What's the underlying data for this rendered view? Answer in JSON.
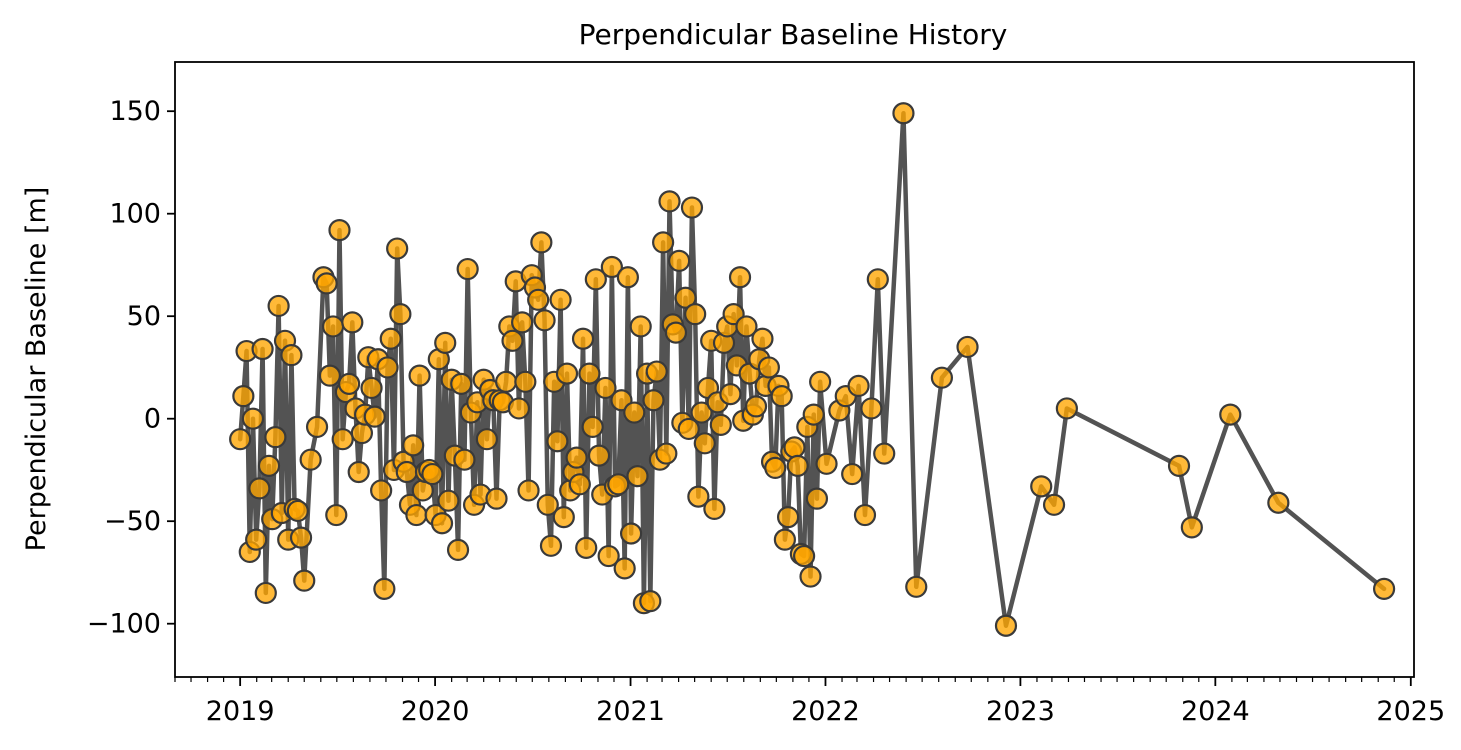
{
  "chart_data": {
    "type": "line",
    "title": "Perpendicular Baseline History",
    "xlabel": "",
    "ylabel": "Perpendicular Baseline [m]",
    "x_ticks": [
      "2019",
      "2020",
      "2021",
      "2022",
      "2023",
      "2024",
      "2025"
    ],
    "y_ticks": [
      150,
      100,
      50,
      0,
      -50,
      -100
    ],
    "y_tick_labels": [
      "150",
      "100",
      "50",
      "0",
      "−50",
      "−100"
    ],
    "xlim": [
      "2018-09-01",
      "2025-01-07"
    ],
    "ylim": [
      -126,
      174
    ],
    "grid": false,
    "legend": "none",
    "colors": {
      "line": "#4a4a4a",
      "marker_fill": "#ffa500",
      "marker_edge": "#3a3a3a"
    },
    "series": [
      {
        "points": [
          [
            "2019-01-01",
            -10
          ],
          [
            "2019-01-07",
            11
          ],
          [
            "2019-01-13",
            33
          ],
          [
            "2019-01-19",
            -65
          ],
          [
            "2019-01-25",
            0
          ],
          [
            "2019-01-31",
            -59
          ],
          [
            "2019-02-06",
            -34
          ],
          [
            "2019-02-12",
            34
          ],
          [
            "2019-02-18",
            -85
          ],
          [
            "2019-02-24",
            -23
          ],
          [
            "2019-03-02",
            -49
          ],
          [
            "2019-03-08",
            -9
          ],
          [
            "2019-03-14",
            55
          ],
          [
            "2019-03-20",
            -46
          ],
          [
            "2019-03-26",
            38
          ],
          [
            "2019-04-01",
            -59
          ],
          [
            "2019-04-07",
            31
          ],
          [
            "2019-04-13",
            -44
          ],
          [
            "2019-04-19",
            -45
          ],
          [
            "2019-04-25",
            -58
          ],
          [
            "2019-05-01",
            -79
          ],
          [
            "2019-05-13",
            -20
          ],
          [
            "2019-05-25",
            -4
          ],
          [
            "2019-06-06",
            69
          ],
          [
            "2019-06-12",
            66
          ],
          [
            "2019-06-18",
            21
          ],
          [
            "2019-06-24",
            45
          ],
          [
            "2019-06-30",
            -47
          ],
          [
            "2019-07-06",
            92
          ],
          [
            "2019-07-12",
            -10
          ],
          [
            "2019-07-18",
            13
          ],
          [
            "2019-07-24",
            17
          ],
          [
            "2019-07-30",
            47
          ],
          [
            "2019-08-05",
            5
          ],
          [
            "2019-08-11",
            -26
          ],
          [
            "2019-08-17",
            -7
          ],
          [
            "2019-08-23",
            2
          ],
          [
            "2019-08-29",
            30
          ],
          [
            "2019-09-04",
            15
          ],
          [
            "2019-09-10",
            1
          ],
          [
            "2019-09-16",
            29
          ],
          [
            "2019-09-22",
            -35
          ],
          [
            "2019-09-28",
            -83
          ],
          [
            "2019-10-04",
            25
          ],
          [
            "2019-10-10",
            39
          ],
          [
            "2019-10-16",
            -25
          ],
          [
            "2019-10-22",
            83
          ],
          [
            "2019-10-28",
            51
          ],
          [
            "2019-11-03",
            -21
          ],
          [
            "2019-11-09",
            -26
          ],
          [
            "2019-11-15",
            -42
          ],
          [
            "2019-11-21",
            -13
          ],
          [
            "2019-11-27",
            -47
          ],
          [
            "2019-12-03",
            21
          ],
          [
            "2019-12-09",
            -35
          ],
          [
            "2019-12-15",
            -26
          ],
          [
            "2019-12-21",
            -25
          ],
          [
            "2019-12-27",
            -27
          ],
          [
            "2020-01-02",
            -47
          ],
          [
            "2020-01-08",
            29
          ],
          [
            "2020-01-14",
            -51
          ],
          [
            "2020-01-20",
            37
          ],
          [
            "2020-01-26",
            -40
          ],
          [
            "2020-02-01",
            19
          ],
          [
            "2020-02-07",
            -18
          ],
          [
            "2020-02-13",
            -64
          ],
          [
            "2020-02-19",
            17
          ],
          [
            "2020-02-25",
            -20
          ],
          [
            "2020-03-02",
            73
          ],
          [
            "2020-03-08",
            3
          ],
          [
            "2020-03-14",
            -42
          ],
          [
            "2020-03-20",
            8
          ],
          [
            "2020-03-26",
            -37
          ],
          [
            "2020-04-01",
            19
          ],
          [
            "2020-04-07",
            -10
          ],
          [
            "2020-04-13",
            14
          ],
          [
            "2020-04-19",
            9
          ],
          [
            "2020-04-25",
            -39
          ],
          [
            "2020-05-01",
            9
          ],
          [
            "2020-05-07",
            8
          ],
          [
            "2020-05-13",
            18
          ],
          [
            "2020-05-19",
            45
          ],
          [
            "2020-05-25",
            38
          ],
          [
            "2020-05-31",
            67
          ],
          [
            "2020-06-06",
            5
          ],
          [
            "2020-06-12",
            47
          ],
          [
            "2020-06-18",
            18
          ],
          [
            "2020-06-24",
            -35
          ],
          [
            "2020-06-30",
            70
          ],
          [
            "2020-07-06",
            64
          ],
          [
            "2020-07-12",
            58
          ],
          [
            "2020-07-18",
            86
          ],
          [
            "2020-07-24",
            48
          ],
          [
            "2020-07-30",
            -42
          ],
          [
            "2020-08-05",
            -62
          ],
          [
            "2020-08-11",
            18
          ],
          [
            "2020-08-17",
            -11
          ],
          [
            "2020-08-23",
            58
          ],
          [
            "2020-08-29",
            -48
          ],
          [
            "2020-09-04",
            22
          ],
          [
            "2020-09-10",
            -35
          ],
          [
            "2020-09-16",
            -26
          ],
          [
            "2020-09-22",
            -19
          ],
          [
            "2020-09-28",
            -32
          ],
          [
            "2020-10-04",
            39
          ],
          [
            "2020-10-10",
            -63
          ],
          [
            "2020-10-16",
            22
          ],
          [
            "2020-10-22",
            -4
          ],
          [
            "2020-10-28",
            68
          ],
          [
            "2020-11-03",
            -18
          ],
          [
            "2020-11-09",
            -37
          ],
          [
            "2020-11-15",
            15
          ],
          [
            "2020-11-21",
            -67
          ],
          [
            "2020-11-27",
            74
          ],
          [
            "2020-12-03",
            -33
          ],
          [
            "2020-12-09",
            -32
          ],
          [
            "2020-12-15",
            9
          ],
          [
            "2020-12-21",
            -73
          ],
          [
            "2020-12-27",
            69
          ],
          [
            "2021-01-02",
            -56
          ],
          [
            "2021-01-08",
            3
          ],
          [
            "2021-01-14",
            -28
          ],
          [
            "2021-01-20",
            45
          ],
          [
            "2021-01-26",
            -90
          ],
          [
            "2021-02-01",
            22
          ],
          [
            "2021-02-07",
            -89
          ],
          [
            "2021-02-13",
            9
          ],
          [
            "2021-02-19",
            23
          ],
          [
            "2021-02-25",
            -20
          ],
          [
            "2021-03-03",
            86
          ],
          [
            "2021-03-09",
            -17
          ],
          [
            "2021-03-15",
            106
          ],
          [
            "2021-03-21",
            46
          ],
          [
            "2021-03-27",
            42
          ],
          [
            "2021-04-02",
            77
          ],
          [
            "2021-04-08",
            -2
          ],
          [
            "2021-04-14",
            59
          ],
          [
            "2021-04-20",
            -5
          ],
          [
            "2021-04-26",
            103
          ],
          [
            "2021-05-02",
            51
          ],
          [
            "2021-05-08",
            -38
          ],
          [
            "2021-05-14",
            3
          ],
          [
            "2021-05-20",
            -12
          ],
          [
            "2021-05-26",
            15
          ],
          [
            "2021-06-01",
            38
          ],
          [
            "2021-06-07",
            -44
          ],
          [
            "2021-06-13",
            8
          ],
          [
            "2021-06-19",
            -3
          ],
          [
            "2021-06-25",
            37
          ],
          [
            "2021-07-01",
            45
          ],
          [
            "2021-07-07",
            12
          ],
          [
            "2021-07-13",
            51
          ],
          [
            "2021-07-19",
            26
          ],
          [
            "2021-07-25",
            69
          ],
          [
            "2021-07-31",
            -1
          ],
          [
            "2021-08-06",
            45
          ],
          [
            "2021-08-12",
            22
          ],
          [
            "2021-08-18",
            2
          ],
          [
            "2021-08-24",
            6
          ],
          [
            "2021-08-30",
            29
          ],
          [
            "2021-09-05",
            39
          ],
          [
            "2021-09-11",
            16
          ],
          [
            "2021-09-17",
            25
          ],
          [
            "2021-09-23",
            -21
          ],
          [
            "2021-09-29",
            -24
          ],
          [
            "2021-10-05",
            16
          ],
          [
            "2021-10-11",
            11
          ],
          [
            "2021-10-17",
            -59
          ],
          [
            "2021-10-23",
            -48
          ],
          [
            "2021-10-29",
            -16
          ],
          [
            "2021-11-04",
            -14
          ],
          [
            "2021-11-10",
            -23
          ],
          [
            "2021-11-16",
            -66
          ],
          [
            "2021-11-22",
            -67
          ],
          [
            "2021-11-28",
            -4
          ],
          [
            "2021-12-04",
            -77
          ],
          [
            "2021-12-10",
            2
          ],
          [
            "2021-12-16",
            -39
          ],
          [
            "2021-12-22",
            18
          ],
          [
            "2022-01-03",
            -22
          ],
          [
            "2022-01-27",
            4
          ],
          [
            "2022-02-08",
            11
          ],
          [
            "2022-02-20",
            -27
          ],
          [
            "2022-03-04",
            16
          ],
          [
            "2022-03-16",
            -47
          ],
          [
            "2022-03-28",
            5
          ],
          [
            "2022-04-09",
            68
          ],
          [
            "2022-04-21",
            -17
          ],
          [
            "2022-05-27",
            149
          ],
          [
            "2022-06-20",
            -82
          ],
          [
            "2022-08-07",
            20
          ],
          [
            "2022-09-24",
            35
          ],
          [
            "2022-12-05",
            -101
          ],
          [
            "2023-02-09",
            -33
          ],
          [
            "2023-03-05",
            -42
          ],
          [
            "2023-03-29",
            5
          ],
          [
            "2023-10-25",
            -23
          ],
          [
            "2023-11-18",
            -53
          ],
          [
            "2024-01-29",
            2
          ],
          [
            "2024-04-28",
            -41
          ],
          [
            "2024-11-12",
            -83
          ]
        ]
      }
    ]
  }
}
